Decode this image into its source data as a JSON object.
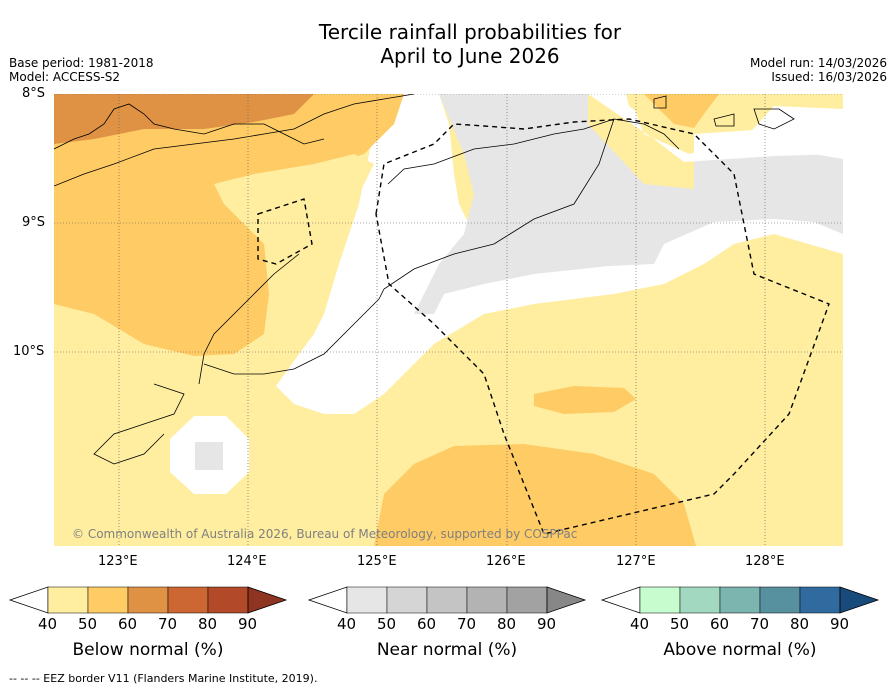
{
  "title_line1": "Tercile rainfall probabilities for",
  "title_line2": "April to June 2026",
  "base_period": "Base period: 1981-2018",
  "model": "Model: ACCESS-S2",
  "model_run": "Model run: 14/03/2026",
  "issued": "Issued: 16/03/2026",
  "lat_labels": [
    "8°S",
    "9°S",
    "10°S"
  ],
  "lon_labels": [
    "123°E",
    "124°E",
    "125°E",
    "126°E",
    "127°E",
    "128°E"
  ],
  "copyright": "© Commonwealth of Australia 2026, Bureau of Meteorology, supported by COSPPac",
  "colorbar_ticks": [
    "40",
    "50",
    "60",
    "70",
    "80",
    "90"
  ],
  "colorbars": [
    {
      "label": "Below normal (%)",
      "colors": [
        "#ffeda0",
        "#fecb65",
        "#e09244",
        "#cc6633",
        "#b24a2a",
        "#8f3420"
      ]
    },
    {
      "label": "Near normal (%)",
      "colors": [
        "#e6e6e6",
        "#d5d5d5",
        "#c4c4c4",
        "#b3b3b3",
        "#a2a2a2",
        "#878787"
      ]
    },
    {
      "label": "Above normal (%)",
      "colors": [
        "#c7fccf",
        "#a2d8c0",
        "#7cb4b0",
        "#5791a0",
        "#306a9e",
        "#194a7c"
      ]
    }
  ],
  "footer": "--  --  -- EEZ border V11 (Flanders Marine Institute, 2019)."
}
